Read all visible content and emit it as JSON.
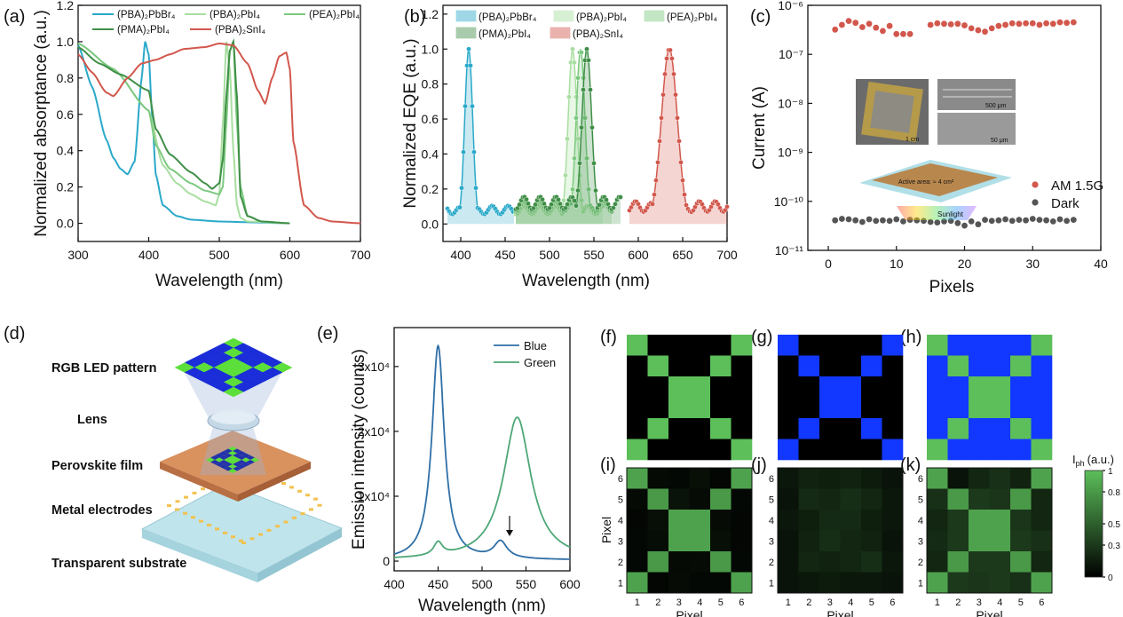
{
  "panel_labels": {
    "a": "(a)",
    "b": "(b)",
    "c": "(c)",
    "d": "(d)",
    "e": "(e)",
    "f": "(f)",
    "g": "(g)",
    "h": "(h)",
    "i": "(i)",
    "j": "(j)",
    "k": "(k)"
  },
  "colors": {
    "pbbr": "#2aa9c9",
    "pbi_light": "#a8dea0",
    "pea": "#7cc97f",
    "pma": "#3f8f47",
    "sn": "#d2574c",
    "blue": "#2f6fa6",
    "green": "#4ea777",
    "ledgreen": "#5cbf5a",
    "ledblue": "#1238ff"
  },
  "chart_data": [
    {
      "id": "a",
      "type": "line",
      "xlabel": "Wavelength (nm)",
      "ylabel": "Normalized absorptance (a.u.)",
      "xlim": [
        300,
        700
      ],
      "ylim": [
        -0.1,
        1.2
      ],
      "xticks": [
        "300",
        "400",
        "500",
        "600",
        "700"
      ],
      "yticks": [
        "0.0",
        "0.2",
        "0.4",
        "0.6",
        "0.8",
        "1.0",
        "1.2"
      ],
      "legend": [
        "(PBA)₂PbBr₄",
        "(PBA)₂PbI₄",
        "(PEA)₂PbI₄",
        "(PMA)₂PbI₄",
        "(PBA)₂SnI₄"
      ],
      "series": [
        {
          "name": "(PBA)₂PbBr₄",
          "color": "#2aa9c9",
          "x": [
            300,
            320,
            340,
            350,
            360,
            370,
            380,
            390,
            395,
            400,
            405,
            410,
            420,
            440,
            460,
            500,
            550,
            600
          ],
          "y": [
            0.98,
            0.75,
            0.46,
            0.36,
            0.3,
            0.27,
            0.34,
            0.8,
            1.0,
            0.93,
            0.58,
            0.27,
            0.1,
            0.04,
            0.02,
            0.01,
            0.005,
            0.0
          ]
        },
        {
          "name": "(PBA)₂PbI₄",
          "color": "#a8dea0",
          "x": [
            300,
            350,
            400,
            420,
            440,
            460,
            480,
            495,
            500,
            505,
            510,
            515,
            520,
            525,
            530,
            540,
            600
          ],
          "y": [
            0.99,
            0.85,
            0.62,
            0.32,
            0.22,
            0.16,
            0.12,
            0.1,
            0.16,
            0.55,
            1.0,
            0.85,
            0.4,
            0.1,
            0.03,
            0.01,
            0.0
          ]
        },
        {
          "name": "(PEA)₂PbI₄",
          "color": "#7cc97f",
          "x": [
            300,
            350,
            400,
            410,
            430,
            460,
            480,
            500,
            505,
            510,
            515,
            520,
            525,
            530,
            540,
            560,
            600
          ],
          "y": [
            0.99,
            0.85,
            0.62,
            0.43,
            0.3,
            0.22,
            0.18,
            0.16,
            0.2,
            0.55,
            0.95,
            1.0,
            0.55,
            0.2,
            0.04,
            0.01,
            0.0
          ]
        },
        {
          "name": "(PMA)₂PbI₄",
          "color": "#3f8f47",
          "x": [
            300,
            330,
            360,
            400,
            410,
            430,
            460,
            480,
            490,
            500,
            505,
            510,
            515,
            520,
            525,
            530,
            540,
            560,
            600
          ],
          "y": [
            0.97,
            0.88,
            0.82,
            0.73,
            0.52,
            0.38,
            0.28,
            0.22,
            0.19,
            0.22,
            0.35,
            0.7,
            0.95,
            1.0,
            0.7,
            0.15,
            0.04,
            0.01,
            0.0
          ]
        },
        {
          "name": "(PBA)₂SnI₄",
          "color": "#d2574c",
          "x": [
            300,
            320,
            340,
            350,
            370,
            390,
            410,
            430,
            450,
            480,
            500,
            520,
            540,
            555,
            565,
            575,
            585,
            595,
            600,
            605,
            620,
            640,
            660,
            700
          ],
          "y": [
            0.93,
            0.83,
            0.72,
            0.7,
            0.8,
            0.88,
            0.9,
            0.93,
            0.96,
            0.97,
            0.99,
            0.98,
            0.88,
            0.73,
            0.66,
            0.8,
            0.92,
            0.94,
            0.85,
            0.45,
            0.1,
            0.03,
            0.01,
            0.0
          ]
        }
      ]
    },
    {
      "id": "b",
      "type": "line",
      "xlabel": "Wavelength (nm)",
      "ylabel": "Normalized EQE (a.u.)",
      "xlim": [
        380,
        700
      ],
      "ylim": [
        -0.1,
        1.25
      ],
      "xticks": [
        "400",
        "450",
        "500",
        "550",
        "600",
        "650",
        "700"
      ],
      "yticks": [
        "0.0",
        "0.2",
        "0.4",
        "0.6",
        "0.8",
        "1.0",
        "1.2"
      ],
      "legend": [
        "(PBA)₂PbBr₄",
        "(PBA)₂PbI₄",
        "(PEA)₂PbI₄",
        "(PMA)₂PbI₄",
        "(PBA)₂SnI₄"
      ],
      "series": [
        {
          "name": "(PBA)₂PbBr₄",
          "color": "#2aa9c9",
          "peak": 409,
          "width": 4.5,
          "base": 0.08,
          "range": [
            385,
            460
          ]
        },
        {
          "name": "(PBA)₂PbI₄",
          "color": "#a8dea0",
          "peak": 526,
          "width": 5,
          "base": 0.08,
          "range": [
            462,
            560
          ]
        },
        {
          "name": "(PEA)₂PbI₄",
          "color": "#7cc97f",
          "peak": 535,
          "width": 5,
          "base": 0.1,
          "range": [
            462,
            570
          ]
        },
        {
          "name": "(PMA)₂PbI₄",
          "color": "#3f8f47",
          "peak": 542,
          "width": 5.5,
          "base": 0.12,
          "range": [
            462,
            580
          ]
        },
        {
          "name": "(PBA)₂SnI₄",
          "color": "#d2574c",
          "peak": 635,
          "width": 9,
          "base": 0.1,
          "range": [
            590,
            700
          ]
        }
      ]
    },
    {
      "id": "c",
      "type": "scatter",
      "xlabel": "Pixels",
      "ylabel": "Current (A)",
      "xlim": [
        -3,
        40
      ],
      "ylog": [
        -11,
        -6
      ],
      "xticks": [
        "0",
        "10",
        "20",
        "30",
        "40"
      ],
      "yticks": [
        "10⁻¹¹",
        "10⁻¹⁰",
        "10⁻⁹",
        "10⁻⁸",
        "10⁻⁷",
        "10⁻⁶"
      ],
      "legend": [
        "AM 1.5G",
        "Dark"
      ],
      "series": [
        {
          "name": "AM 1.5G",
          "color": "#d2574c",
          "values": [
            3.2e-07,
            4e-07,
            4.8e-07,
            4.4e-07,
            3.6e-07,
            4.2e-07,
            3.5e-07,
            3e-07,
            3.8e-07,
            2.6e-07,
            2.6e-07,
            2.6e-07,
            null,
            null,
            4e-07,
            4.3e-07,
            4.2e-07,
            4.1e-07,
            4.2e-07,
            3.9e-07,
            3.4e-07,
            3.1e-07,
            2.9e-07,
            3.4e-07,
            3.8e-07,
            4e-07,
            4.3e-07,
            4.2e-07,
            4.3e-07,
            4.3e-07,
            4e-07,
            4.3e-07,
            4.2e-07,
            4.5e-07,
            4.4e-07,
            4.5e-07
          ]
        },
        {
          "name": "Dark",
          "color": "#555555",
          "values": [
            4.1e-11,
            4.4e-11,
            4.3e-11,
            4.1e-11,
            3.8e-11,
            4.3e-11,
            4e-11,
            4.1e-11,
            4e-11,
            4.3e-11,
            3.9e-11,
            4.2e-11,
            4.1e-11,
            4e-11,
            3.8e-11,
            3.7e-11,
            3.9e-11,
            4e-11,
            3.6e-11,
            3.2e-11,
            3.9e-11,
            3.4e-11,
            4.2e-11,
            4e-11,
            4.1e-11,
            4.3e-11,
            4e-11,
            4.2e-11,
            4.1e-11,
            4.4e-11,
            4.2e-11,
            4.1e-11,
            3.9e-11,
            4.3e-11,
            4e-11,
            4.2e-11
          ]
        }
      ],
      "inset": {
        "scale1": "500 μm",
        "scale2": "50 μm",
        "scale3": "1 cm",
        "active_area": "Active area: ≈ 4 cm²",
        "sunlight": "Sunlight"
      }
    },
    {
      "id": "e",
      "type": "line",
      "xlabel": "Wavelength (nm)",
      "ylabel": "Emission intensity (counts)",
      "xlim": [
        400,
        600
      ],
      "ylim": [
        -1500,
        36000
      ],
      "xticks": [
        "400",
        "450",
        "500",
        "550",
        "600"
      ],
      "yticks": [
        "0",
        "1x10⁴",
        "2x10⁴",
        "3x10⁴"
      ],
      "legend": [
        "Blue",
        "Green"
      ],
      "series": [
        {
          "name": "Blue",
          "color": "#2f6fa6",
          "peaks": [
            {
              "c": 450,
              "a": 33000,
              "w": 8.5
            },
            {
              "c": 521,
              "a": 2600,
              "w": 9
            }
          ]
        },
        {
          "name": "Green",
          "color": "#4ea777",
          "peaks": [
            {
              "c": 450,
              "a": 2000,
              "w": 6
            },
            {
              "c": 540,
              "a": 22000,
              "w": 19
            }
          ]
        }
      ]
    },
    {
      "id": "ik",
      "type": "heatmap",
      "xlabel": "Pixel",
      "ylabel": "Pixel",
      "ticks": [
        "1",
        "2",
        "3",
        "4",
        "5",
        "6"
      ],
      "colorbar": {
        "label": "I",
        "sub": "ph",
        "unit": "(a.u.)",
        "ticks": [
          "1",
          "0.8",
          "0.5",
          "0.3",
          "0"
        ]
      },
      "patterns": {
        "f": [
          [
            1,
            0,
            0,
            0,
            0,
            1
          ],
          [
            0,
            1,
            0,
            0,
            1,
            0
          ],
          [
            0,
            0,
            1,
            1,
            0,
            0
          ],
          [
            0,
            0,
            1,
            1,
            0,
            0
          ],
          [
            0,
            1,
            0,
            0,
            1,
            0
          ],
          [
            1,
            0,
            0,
            0,
            0,
            1
          ]
        ],
        "g": [
          [
            2,
            0,
            0,
            0,
            0,
            2
          ],
          [
            0,
            2,
            0,
            0,
            2,
            0
          ],
          [
            0,
            0,
            2,
            2,
            0,
            0
          ],
          [
            0,
            0,
            2,
            2,
            0,
            0
          ],
          [
            0,
            2,
            0,
            0,
            2,
            0
          ],
          [
            2,
            0,
            0,
            0,
            0,
            2
          ]
        ],
        "h": [
          [
            1,
            2,
            2,
            2,
            2,
            1
          ],
          [
            2,
            1,
            2,
            2,
            1,
            2
          ],
          [
            2,
            2,
            1,
            1,
            2,
            2
          ],
          [
            2,
            2,
            1,
            1,
            2,
            2
          ],
          [
            2,
            1,
            2,
            2,
            1,
            2
          ],
          [
            1,
            2,
            2,
            2,
            2,
            1
          ]
        ]
      },
      "values": {
        "i": [
          [
            0.85,
            0.05,
            0.04,
            0.08,
            0.03,
            0.85
          ],
          [
            0.05,
            0.8,
            0.1,
            0.06,
            0.8,
            0.04
          ],
          [
            0.03,
            0.08,
            0.85,
            0.85,
            0.06,
            0.03
          ],
          [
            0.04,
            0.07,
            0.85,
            0.85,
            0.08,
            0.03
          ],
          [
            0.04,
            0.8,
            0.05,
            0.06,
            0.8,
            0.04
          ],
          [
            0.85,
            0.03,
            0.06,
            0.04,
            0.04,
            0.85
          ]
        ],
        "j": [
          [
            0.12,
            0.18,
            0.16,
            0.18,
            0.14,
            0.1
          ],
          [
            0.1,
            0.22,
            0.2,
            0.24,
            0.2,
            0.12
          ],
          [
            0.12,
            0.16,
            0.22,
            0.22,
            0.16,
            0.12
          ],
          [
            0.1,
            0.18,
            0.24,
            0.2,
            0.18,
            0.1
          ],
          [
            0.1,
            0.2,
            0.18,
            0.2,
            0.24,
            0.12
          ],
          [
            0.1,
            0.12,
            0.14,
            0.12,
            0.12,
            0.1
          ]
        ],
        "k": [
          [
            0.85,
            0.1,
            0.2,
            0.25,
            0.18,
            0.85
          ],
          [
            0.25,
            0.8,
            0.3,
            0.28,
            0.8,
            0.2
          ],
          [
            0.2,
            0.3,
            0.85,
            0.85,
            0.28,
            0.2
          ],
          [
            0.22,
            0.3,
            0.85,
            0.85,
            0.3,
            0.25
          ],
          [
            0.2,
            0.8,
            0.3,
            0.3,
            0.8,
            0.2
          ],
          [
            0.85,
            0.3,
            0.28,
            0.3,
            0.25,
            0.85
          ]
        ]
      }
    }
  ],
  "diagram_d": {
    "layers": [
      "RGB LED pattern",
      "Lens",
      "Perovskite film",
      "Metal electrodes",
      "Transparent substrate"
    ]
  }
}
